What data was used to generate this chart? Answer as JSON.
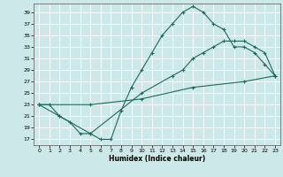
{
  "xlabel": "Humidex (Indice chaleur)",
  "ylabel": "",
  "bg_color": "#cde8e8",
  "line_color": "#1a6b5a",
  "grid_color": "#ffffff",
  "xlim": [
    -0.5,
    23.5
  ],
  "ylim": [
    16,
    40.5
  ],
  "yticks": [
    17,
    19,
    21,
    23,
    25,
    27,
    29,
    31,
    33,
    35,
    37,
    39
  ],
  "xticks": [
    0,
    1,
    2,
    3,
    4,
    5,
    6,
    7,
    8,
    9,
    10,
    11,
    12,
    13,
    14,
    15,
    16,
    17,
    18,
    19,
    20,
    21,
    22,
    23
  ],
  "line1_x": [
    0,
    1,
    2,
    3,
    4,
    5,
    6,
    7,
    8,
    9,
    10,
    11,
    12,
    13,
    14,
    15,
    16,
    17,
    18,
    19,
    20,
    21,
    22,
    23
  ],
  "line1_y": [
    23,
    23,
    21,
    20,
    18,
    18,
    17,
    17,
    22,
    26,
    29,
    32,
    35,
    37,
    39,
    40,
    39,
    37,
    36,
    33,
    33,
    32,
    30,
    28
  ],
  "line2_x": [
    0,
    2,
    5,
    10,
    13,
    14,
    15,
    16,
    17,
    18,
    19,
    20,
    21,
    22,
    23
  ],
  "line2_y": [
    23,
    21,
    18,
    25,
    28,
    29,
    31,
    32,
    33,
    34,
    34,
    34,
    33,
    32,
    28
  ],
  "line3_x": [
    0,
    5,
    10,
    15,
    20,
    23
  ],
  "line3_y": [
    23,
    23,
    24,
    26,
    27,
    28
  ]
}
